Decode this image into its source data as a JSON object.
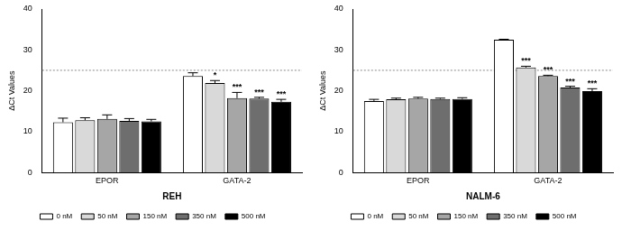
{
  "chart_data": [
    {
      "type": "bar",
      "x_label": "REH",
      "y_label": "ΔCt Values",
      "categories": [
        "EPOR",
        "GATA-2"
      ],
      "series": [
        {
          "name": "0 nM",
          "color": "#ffffff",
          "values": [
            12.3,
            23.6
          ],
          "errors": [
            1.0,
            0.8
          ],
          "significance": [
            null,
            null
          ]
        },
        {
          "name": "50 nM",
          "color": "#d9d9d9",
          "values": [
            12.8,
            21.9
          ],
          "errors": [
            0.6,
            0.6
          ],
          "significance": [
            null,
            "*"
          ]
        },
        {
          "name": "150 nM",
          "color": "#a6a6a6",
          "values": [
            13.1,
            18.2
          ],
          "errors": [
            1.0,
            1.4
          ],
          "significance": [
            null,
            "***"
          ]
        },
        {
          "name": "350 nM",
          "color": "#6e6e6e",
          "values": [
            12.6,
            18.1
          ],
          "errors": [
            0.6,
            0.3
          ],
          "significance": [
            null,
            "***"
          ]
        },
        {
          "name": "500 nM",
          "color": "#000000",
          "values": [
            12.5,
            17.3
          ],
          "errors": [
            0.5,
            0.6
          ],
          "significance": [
            null,
            "***"
          ]
        }
      ],
      "threshold": 25,
      "ylim": [
        0,
        40
      ],
      "yticks": [
        0,
        10,
        20,
        30,
        40
      ],
      "grid": false,
      "legend": "bottom"
    },
    {
      "type": "bar",
      "x_label": "NALM-6",
      "y_label": "ΔCt Values",
      "categories": [
        "EPOR",
        "GATA-2"
      ],
      "series": [
        {
          "name": "0 nM",
          "color": "#ffffff",
          "values": [
            17.5,
            32.5
          ],
          "errors": [
            0.4,
            0.1
          ],
          "significance": [
            null,
            null
          ]
        },
        {
          "name": "50 nM",
          "color": "#d9d9d9",
          "values": [
            17.9,
            25.7
          ],
          "errors": [
            0.3,
            0.3
          ],
          "significance": [
            null,
            "***"
          ]
        },
        {
          "name": "150 nM",
          "color": "#a6a6a6",
          "values": [
            18.1,
            23.6
          ],
          "errors": [
            0.3,
            0.2
          ],
          "significance": [
            null,
            "***"
          ]
        },
        {
          "name": "350 nM",
          "color": "#6e6e6e",
          "values": [
            18.0,
            20.8
          ],
          "errors": [
            0.2,
            0.3
          ],
          "significance": [
            null,
            "***"
          ]
        },
        {
          "name": "500 nM",
          "color": "#000000",
          "values": [
            18.0,
            19.9
          ],
          "errors": [
            0.3,
            0.6
          ],
          "significance": [
            null,
            "***"
          ]
        }
      ],
      "threshold": 25,
      "ylim": [
        0,
        40
      ],
      "yticks": [
        0,
        10,
        20,
        30,
        40
      ],
      "grid": false,
      "legend": "bottom"
    }
  ]
}
